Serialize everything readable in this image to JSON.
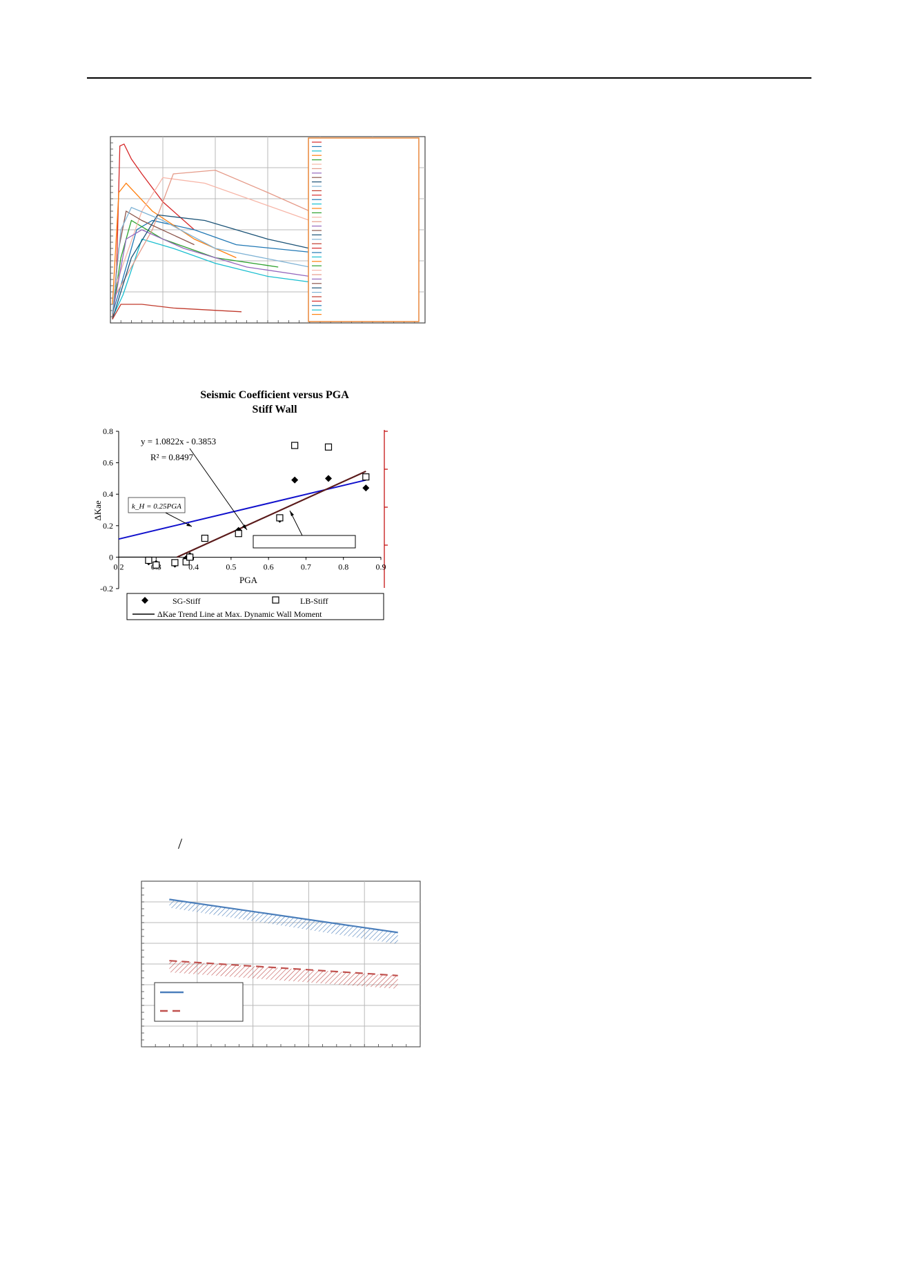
{
  "page": {
    "slash_text": "/"
  },
  "figure2": {
    "chart_data": {
      "type": "scatter",
      "title": "Seismic Coefficient versus PGA",
      "subtitle": "Stiff Wall",
      "xlabel": "PGA",
      "ylabel": "ΔKae",
      "xlim": [
        0.2,
        0.9
      ],
      "ylim": [
        -0.2,
        0.8
      ],
      "x_ticks": [
        "0.2",
        "0.3",
        "0.4",
        "0.5",
        "0.6",
        "0.7",
        "0.8",
        "0.9"
      ],
      "y_ticks": [
        "-0.2",
        "0",
        "0.2",
        "0.4",
        "0.6",
        "0.8"
      ],
      "series": [
        {
          "name": "SG-Stiff",
          "marker": "diamond",
          "points": [
            [
              0.28,
              -0.03
            ],
            [
              0.3,
              -0.04
            ],
            [
              0.35,
              -0.045
            ],
            [
              0.38,
              -0.01
            ],
            [
              0.39,
              0.01
            ],
            [
              0.43,
              0.12
            ],
            [
              0.52,
              0.17
            ],
            [
              0.63,
              0.24
            ],
            [
              0.67,
              0.49
            ],
            [
              0.76,
              0.5
            ],
            [
              0.86,
              0.44
            ]
          ]
        },
        {
          "name": "LB-Stiff",
          "marker": "open-square",
          "points": [
            [
              0.28,
              -0.02
            ],
            [
              0.3,
              -0.05
            ],
            [
              0.35,
              -0.035
            ],
            [
              0.38,
              -0.03
            ],
            [
              0.39,
              0.0
            ],
            [
              0.43,
              0.12
            ],
            [
              0.52,
              0.15
            ],
            [
              0.63,
              0.25
            ],
            [
              0.67,
              0.71
            ],
            [
              0.76,
              0.7
            ],
            [
              0.86,
              0.51
            ]
          ]
        }
      ],
      "trend_line": {
        "name": "ΔKae Trend Line at Max. Dynamic Wall Moment",
        "slope": 1.0822,
        "intercept": -0.3853,
        "x_range": [
          0.356,
          0.86
        ],
        "color": "#5a1a1a"
      },
      "kh_line": {
        "label": "k_H = 0.25PGA",
        "x_range": [
          0.2,
          0.86
        ],
        "y_range": [
          0.115,
          0.49
        ],
        "color": "#1010cc"
      },
      "equation": "y = 1.0822x - 0.3853",
      "r_squared": "R² = 0.8497",
      "legend": [
        "SG-Stiff",
        "LB-Stiff",
        "ΔKae Trend Line at Max. Dynamic Wall Moment"
      ]
    }
  },
  "figure1": {
    "chart_data": {
      "type": "line",
      "x_range": [
        0,
        3
      ],
      "y_range": [
        0,
        1
      ],
      "series": [
        {
          "color": "#d62728",
          "values": [
            [
              0.02,
              0.02
            ],
            [
              0.06,
              0.3
            ],
            [
              0.09,
              0.95
            ],
            [
              0.13,
              0.96
            ],
            [
              0.2,
              0.88
            ],
            [
              0.3,
              0.8
            ],
            [
              0.5,
              0.65
            ],
            [
              0.8,
              0.5
            ]
          ]
        },
        {
          "color": "#1f77b4",
          "values": [
            [
              0.02,
              0.05
            ],
            [
              0.1,
              0.2
            ],
            [
              0.25,
              0.5
            ],
            [
              0.4,
              0.55
            ],
            [
              0.8,
              0.5
            ],
            [
              1.2,
              0.42
            ],
            [
              1.9,
              0.38
            ]
          ]
        },
        {
          "color": "#17becf",
          "values": [
            [
              0.02,
              0.03
            ],
            [
              0.12,
              0.15
            ],
            [
              0.3,
              0.45
            ],
            [
              0.6,
              0.4
            ],
            [
              1.0,
              0.32
            ],
            [
              1.5,
              0.25
            ],
            [
              1.9,
              0.22
            ]
          ]
        },
        {
          "color": "#ff7f0e",
          "values": [
            [
              0.02,
              0.1
            ],
            [
              0.08,
              0.7
            ],
            [
              0.15,
              0.75
            ],
            [
              0.4,
              0.6
            ],
            [
              0.8,
              0.45
            ],
            [
              1.2,
              0.35
            ]
          ]
        },
        {
          "color": "#2ca02c",
          "values": [
            [
              0.02,
              0.05
            ],
            [
              0.1,
              0.35
            ],
            [
              0.2,
              0.55
            ],
            [
              0.5,
              0.45
            ],
            [
              1.0,
              0.35
            ],
            [
              1.6,
              0.3
            ]
          ]
        },
        {
          "color": "#f7b6a8",
          "values": [
            [
              0.05,
              0.2
            ],
            [
              0.3,
              0.6
            ],
            [
              0.5,
              0.78
            ],
            [
              0.9,
              0.75
            ],
            [
              1.4,
              0.65
            ],
            [
              1.9,
              0.55
            ]
          ]
        },
        {
          "color": "#e59a88",
          "values": [
            [
              0.05,
              0.15
            ],
            [
              0.4,
              0.5
            ],
            [
              0.6,
              0.8
            ],
            [
              1.0,
              0.82
            ],
            [
              1.5,
              0.7
            ],
            [
              1.9,
              0.6
            ]
          ]
        },
        {
          "color": "#9467bd",
          "values": [
            [
              0.02,
              0.05
            ],
            [
              0.15,
              0.45
            ],
            [
              0.3,
              0.5
            ],
            [
              0.7,
              0.4
            ],
            [
              1.3,
              0.3
            ],
            [
              1.9,
              0.25
            ]
          ]
        },
        {
          "color": "#8c564b",
          "values": [
            [
              0.02,
              0.02
            ],
            [
              0.08,
              0.4
            ],
            [
              0.15,
              0.6
            ],
            [
              0.3,
              0.55
            ],
            [
              0.8,
              0.42
            ]
          ]
        },
        {
          "color": "#1a5276",
          "values": [
            [
              0.02,
              0.02
            ],
            [
              0.2,
              0.35
            ],
            [
              0.45,
              0.58
            ],
            [
              0.9,
              0.55
            ],
            [
              1.5,
              0.45
            ],
            [
              1.9,
              0.4
            ]
          ]
        },
        {
          "color": "#7fb3d5",
          "values": [
            [
              0.02,
              0.05
            ],
            [
              0.1,
              0.5
            ],
            [
              0.2,
              0.62
            ],
            [
              0.5,
              0.55
            ],
            [
              1.0,
              0.4
            ],
            [
              1.9,
              0.3
            ]
          ]
        },
        {
          "color": "#c0392b",
          "values": [
            [
              0.02,
              0.02
            ],
            [
              0.1,
              0.1
            ],
            [
              0.3,
              0.1
            ],
            [
              0.6,
              0.08
            ],
            [
              1.25,
              0.06
            ]
          ]
        }
      ]
    }
  },
  "figure3": {
    "chart_data": {
      "type": "area",
      "x_range": [
        0,
        10
      ],
      "y_range": [
        0,
        10
      ],
      "series": [
        {
          "color": "#4a7ebb",
          "line": "solid",
          "upper": [
            [
              1,
              8.9
            ],
            [
              9.2,
              6.9
            ]
          ],
          "lower": [
            [
              1,
              8.4
            ],
            [
              9.2,
              6.2
            ]
          ]
        },
        {
          "color": "#c0504d",
          "line": "dashed",
          "upper": [
            [
              1,
              5.2
            ],
            [
              9.2,
              4.3
            ]
          ],
          "lower": [
            [
              1,
              4.5
            ],
            [
              9.2,
              3.5
            ]
          ]
        }
      ]
    }
  }
}
